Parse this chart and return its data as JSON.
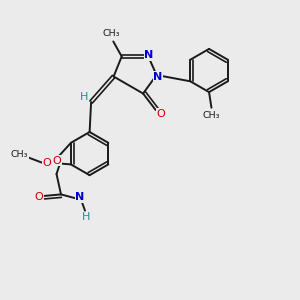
{
  "background_color": "#ebebeb",
  "bond_color": "#1a1a1a",
  "N_color": "#0000cc",
  "O_color": "#cc0000",
  "H_color": "#2e8b8b",
  "figsize": [
    3.0,
    3.0
  ],
  "dpi": 100,
  "xlim": [
    0,
    10
  ],
  "ylim": [
    0,
    10
  ]
}
